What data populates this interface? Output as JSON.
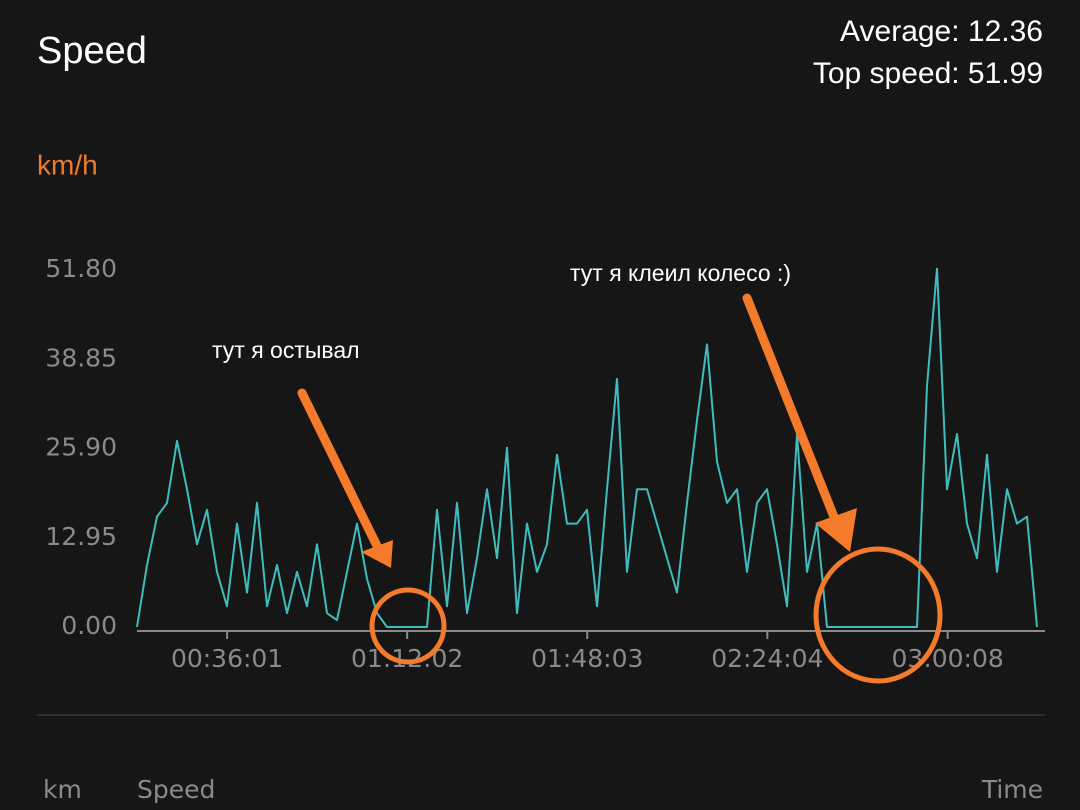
{
  "header": {
    "title": "Speed",
    "average": "Average: 12.36",
    "top_speed": "Top speed: 51.99"
  },
  "chart_data": {
    "type": "line",
    "y_unit": "km/h",
    "x": [
      1080,
      1200,
      1320,
      1440,
      1560,
      1680,
      1800,
      1920,
      2040,
      2160,
      2280,
      2400,
      2520,
      2640,
      2760,
      2880,
      3000,
      3120,
      3240,
      3360,
      3480,
      3600,
      3720,
      3840,
      3960,
      4080,
      4200,
      4320,
      4440,
      4560,
      4680,
      4800,
      4920,
      5040,
      5160,
      5280,
      5400,
      5520,
      5640,
      5760,
      5880,
      6000,
      6120,
      6240,
      6360,
      6480,
      6600,
      6720,
      6840,
      6960,
      7080,
      7200,
      7320,
      7440,
      7560,
      7680,
      7800,
      7920,
      8040,
      8160,
      8280,
      8400,
      8520,
      8640,
      8760,
      8880,
      9000,
      9120,
      9240,
      9360,
      9480,
      9600,
      9720,
      9840,
      9960,
      10080,
      10200,
      10320,
      10440,
      10560,
      10680,
      10800,
      10920,
      11040,
      11160,
      11280,
      11400,
      11520,
      11640,
      11760,
      11880
    ],
    "series": [
      {
        "color": "#3fbcbc",
        "values": [
          0,
          9,
          16,
          18,
          27,
          20,
          12,
          17,
          8,
          3,
          15,
          5,
          18,
          3,
          9,
          2,
          8,
          3,
          12,
          2,
          1,
          8,
          15,
          7,
          2,
          0,
          0,
          0,
          0,
          0,
          17,
          3,
          18,
          2,
          10,
          20,
          10,
          26,
          2,
          15,
          8,
          12,
          25,
          15,
          15,
          17,
          3,
          20,
          36,
          8,
          20,
          20,
          15,
          10,
          5,
          18,
          30,
          41,
          24,
          18,
          20,
          8,
          18,
          20,
          12,
          3,
          28,
          8,
          15,
          0,
          0,
          0,
          0,
          0,
          0,
          0,
          0,
          0,
          0,
          35,
          52,
          20,
          28,
          15,
          10,
          25,
          8,
          20,
          15,
          16,
          0
        ]
      }
    ],
    "xlim": [
      1080,
      11880
    ],
    "ylim": [
      0,
      51.8
    ],
    "xticks": [
      {
        "value": 2161,
        "label": "00:36:01"
      },
      {
        "value": 4322,
        "label": "01:12:02"
      },
      {
        "value": 6483,
        "label": "01:48:03"
      },
      {
        "value": 8644,
        "label": "02:24:04"
      },
      {
        "value": 10808,
        "label": "03:00:08"
      }
    ],
    "yticks": [
      {
        "value": 0,
        "label": "0.00"
      },
      {
        "value": 12.95,
        "label": "12.95"
      },
      {
        "value": 25.9,
        "label": "25.90"
      },
      {
        "value": 38.85,
        "label": "38.85"
      },
      {
        "value": 51.8,
        "label": "51.80"
      }
    ],
    "annotations": [
      "тут я остывал",
      "тут я клеил колесо :)"
    ]
  },
  "footer": {
    "columns": [
      "km",
      "Speed",
      "Time"
    ]
  }
}
